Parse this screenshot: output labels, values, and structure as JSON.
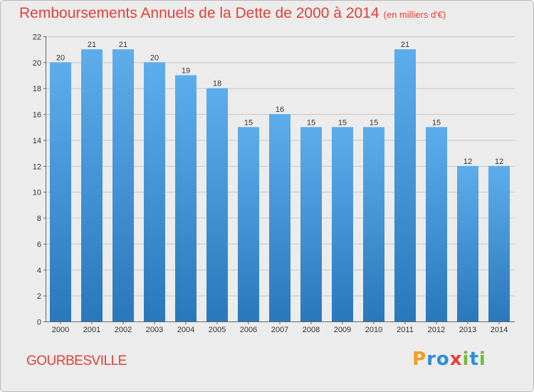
{
  "header": {
    "title": "Remboursements Annuels de la Dette de 2000 à 2014",
    "unit": "(en milliers d'€)"
  },
  "commune": "GOURBESVILLE",
  "brand": {
    "name": "Proxiti",
    "letters": [
      "P",
      "r",
      "o",
      "x",
      "i",
      "t",
      "i"
    ],
    "letter_colors": [
      "#f39c1c",
      "#2b8fd9",
      "#2b8fd9",
      "#e2413a",
      "#7ab83a",
      "#2b8fd9",
      "#7ab83a"
    ]
  },
  "colors": {
    "accent": "#e2413a",
    "bar_light": "#5dadec",
    "bar_dark": "#2a78bc",
    "grid": "#c6c6c6",
    "background": "#ececec"
  },
  "chart_data": {
    "type": "bar",
    "categories": [
      "2000",
      "2001",
      "2002",
      "2003",
      "2004",
      "2005",
      "2006",
      "2007",
      "2008",
      "2009",
      "2010",
      "2011",
      "2012",
      "2013",
      "2014"
    ],
    "values": [
      20,
      21,
      21,
      20,
      19,
      18,
      15,
      16,
      15,
      15,
      15,
      21,
      15,
      12,
      12
    ],
    "title": "Remboursements Annuels de la Dette de 2000 à 2014",
    "unit": "(en milliers d'€)",
    "xlabel": "",
    "ylabel": "",
    "ylim": [
      0,
      22
    ],
    "yticks": [
      0,
      2,
      4,
      6,
      8,
      10,
      12,
      14,
      16,
      18,
      20,
      22
    ],
    "grid": true,
    "data_labels": true
  }
}
